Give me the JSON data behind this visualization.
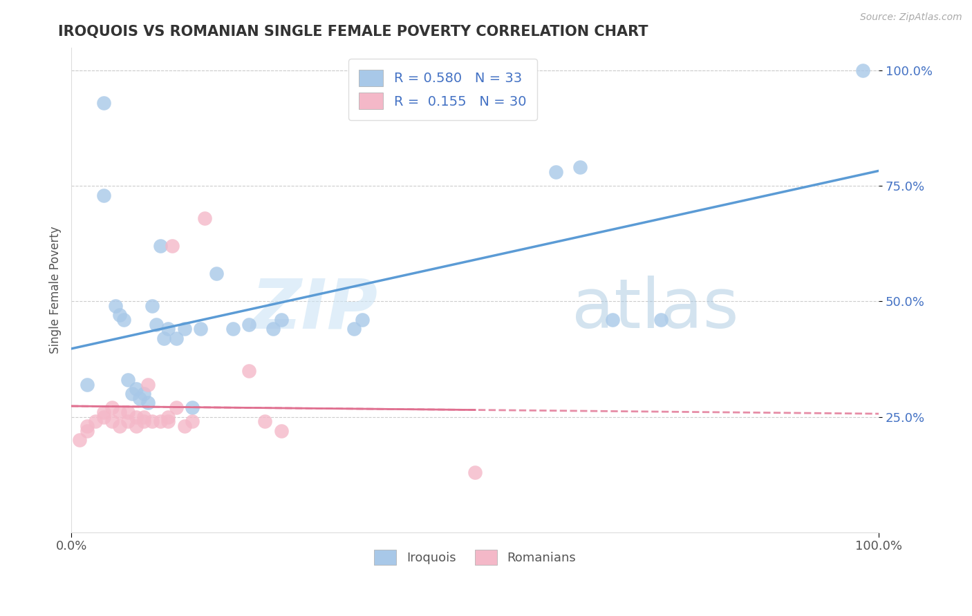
{
  "title": "IROQUOIS VS ROMANIAN SINGLE FEMALE POVERTY CORRELATION CHART",
  "source": "Source: ZipAtlas.com",
  "ylabel": "Single Female Poverty",
  "iroquois_R": 0.58,
  "iroquois_N": 33,
  "romanian_R": 0.155,
  "romanian_N": 30,
  "iroquois_color": "#a8c8e8",
  "iroquois_line_color": "#5b9bd5",
  "romanian_color": "#f4b8c8",
  "romanian_line_color": "#e07090",
  "iroquois_x": [
    0.02,
    0.04,
    0.04,
    0.055,
    0.06,
    0.065,
    0.07,
    0.075,
    0.08,
    0.085,
    0.09,
    0.095,
    0.1,
    0.105,
    0.11,
    0.115,
    0.12,
    0.13,
    0.14,
    0.15,
    0.16,
    0.18,
    0.2,
    0.22,
    0.25,
    0.26,
    0.35,
    0.36,
    0.6,
    0.63,
    0.67,
    0.73,
    0.98
  ],
  "iroquois_y": [
    0.32,
    0.93,
    0.73,
    0.49,
    0.47,
    0.46,
    0.33,
    0.3,
    0.31,
    0.29,
    0.3,
    0.28,
    0.49,
    0.45,
    0.62,
    0.42,
    0.44,
    0.42,
    0.44,
    0.27,
    0.44,
    0.56,
    0.44,
    0.45,
    0.44,
    0.46,
    0.44,
    0.46,
    0.78,
    0.79,
    0.46,
    0.46,
    1.0
  ],
  "romanian_x": [
    0.01,
    0.02,
    0.02,
    0.03,
    0.04,
    0.04,
    0.05,
    0.05,
    0.06,
    0.06,
    0.07,
    0.07,
    0.08,
    0.08,
    0.09,
    0.09,
    0.095,
    0.1,
    0.11,
    0.12,
    0.12,
    0.125,
    0.13,
    0.14,
    0.15,
    0.165,
    0.22,
    0.24,
    0.26,
    0.5
  ],
  "romanian_y": [
    0.2,
    0.22,
    0.23,
    0.24,
    0.26,
    0.25,
    0.24,
    0.27,
    0.26,
    0.23,
    0.26,
    0.24,
    0.25,
    0.23,
    0.24,
    0.25,
    0.32,
    0.24,
    0.24,
    0.24,
    0.25,
    0.62,
    0.27,
    0.23,
    0.24,
    0.68,
    0.35,
    0.24,
    0.22,
    0.13
  ],
  "xlim": [
    0.0,
    1.0
  ],
  "ylim": [
    0.0,
    1.05
  ],
  "yticks": [
    0.25,
    0.5,
    0.75,
    1.0
  ],
  "ytick_labels": [
    "25.0%",
    "50.0%",
    "75.0%",
    "100.0%"
  ],
  "xtick_labels": [
    "0.0%",
    "100.0%"
  ],
  "watermark_zip": "ZIP",
  "watermark_atlas": "atlas",
  "background_color": "#ffffff",
  "grid_color": "#cccccc",
  "legend_text_color": "#4472c4",
  "title_color": "#333333",
  "ylabel_color": "#555555"
}
